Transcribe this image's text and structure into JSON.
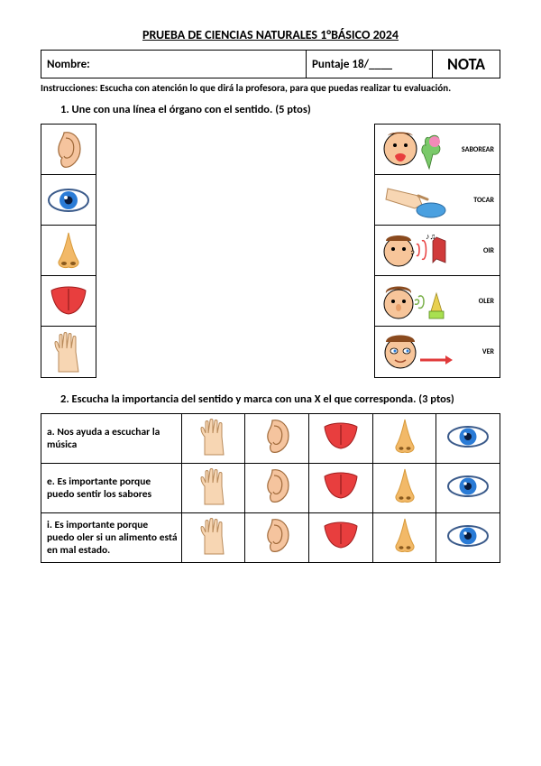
{
  "title": "PRUEBA DE CIENCIAS NATURALES 1°BÁSICO 2024",
  "header": {
    "nombre_label": "Nombre:",
    "puntaje_label": "Puntaje 18/____",
    "nota_label": "NOTA"
  },
  "instructions": "Instrucciones: Escucha con atención lo que dirá la profesora, para que puedas realizar tu evaluación.",
  "q1": {
    "text": "1.  Une con una línea el órgano con el sentido.              (5 ptos)",
    "organs": [
      "ear",
      "eye",
      "nose",
      "tongue",
      "hand"
    ],
    "senses": [
      {
        "label": "SABOREAR"
      },
      {
        "label": "TOCAR"
      },
      {
        "label": "OIR"
      },
      {
        "label": "OLER"
      },
      {
        "label": "VER"
      }
    ]
  },
  "q2": {
    "text": "2.  Escucha la importancia del sentido y marca con una X el que corresponda.  (3 ptos)",
    "rows": [
      {
        "letter": "a.",
        "text": "Nos ayuda a escuchar la música"
      },
      {
        "letter": "e.",
        "text": "Es importante porque puedo sentir los sabores"
      },
      {
        "letter": "i.",
        "text": "Es importante porque puedo oler si un alimento está en mal estado."
      }
    ],
    "columns": [
      "hand",
      "ear",
      "tongue",
      "nose",
      "eye"
    ]
  },
  "colors": {
    "ear_skin": "#f5c49e",
    "eye_iris": "#2a7bd6",
    "eye_outline": "#3a5a8a",
    "nose": "#f2b968",
    "nose_shadow": "#d89a3a",
    "tongue": "#e83e3e",
    "tongue_mid": "#b52a2a",
    "hand": "#f7d6b3",
    "face": "#f7c59a",
    "hair": "#8a4a1e"
  }
}
